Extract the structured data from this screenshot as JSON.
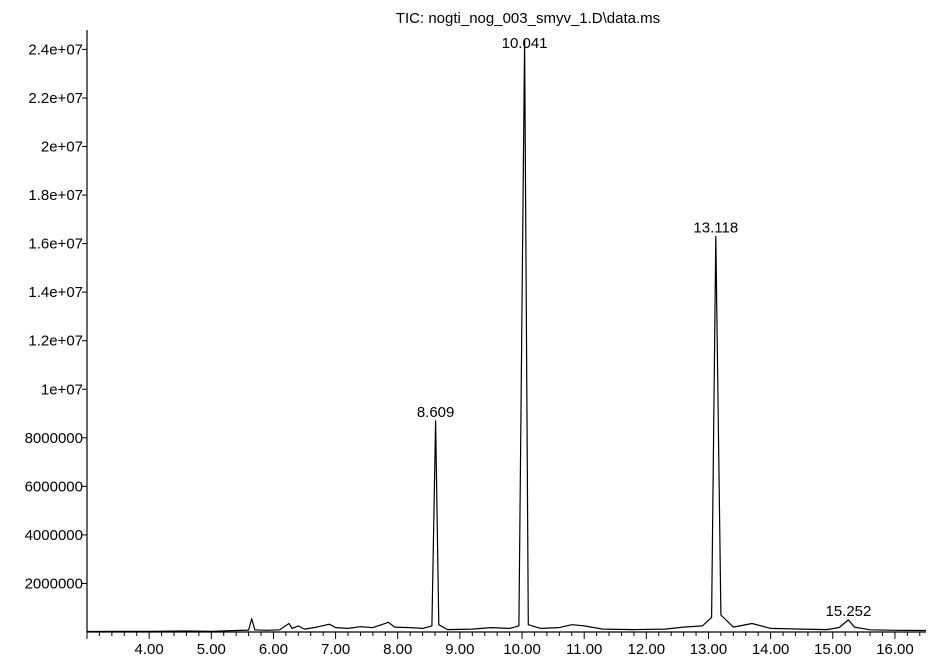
{
  "chart_data": {
    "type": "line",
    "title": "TIC: nogti_nog_003_smyv_1.D\\data.ms",
    "xlabel": "",
    "ylabel": "",
    "xlim": [
      3.0,
      16.5
    ],
    "ylim": [
      0,
      24800000
    ],
    "grid": false,
    "legend": "none",
    "x_ticks": [
      {
        "value": 4.0,
        "label": "4.00"
      },
      {
        "value": 5.0,
        "label": "5.00"
      },
      {
        "value": 6.0,
        "label": "6.00"
      },
      {
        "value": 7.0,
        "label": "7.00"
      },
      {
        "value": 8.0,
        "label": "8.00"
      },
      {
        "value": 9.0,
        "label": "9.00"
      },
      {
        "value": 10.0,
        "label": "10.00"
      },
      {
        "value": 11.0,
        "label": "11.00"
      },
      {
        "value": 12.0,
        "label": "12.00"
      },
      {
        "value": 13.0,
        "label": "13.00"
      },
      {
        "value": 14.0,
        "label": "14.00"
      },
      {
        "value": 15.0,
        "label": "15.00"
      },
      {
        "value": 16.0,
        "label": "16.00"
      }
    ],
    "y_ticks": [
      {
        "value": 2000000,
        "label": "2000000"
      },
      {
        "value": 4000000,
        "label": "4000000"
      },
      {
        "value": 6000000,
        "label": "6000000"
      },
      {
        "value": 8000000,
        "label": "8000000"
      },
      {
        "value": 10000000,
        "label": "1e+07"
      },
      {
        "value": 12000000,
        "label": "1.2e+07"
      },
      {
        "value": 14000000,
        "label": "1.4e+07"
      },
      {
        "value": 16000000,
        "label": "1.6e+07"
      },
      {
        "value": 18000000,
        "label": "1.8e+07"
      },
      {
        "value": 20000000,
        "label": "2e+07"
      },
      {
        "value": 22000000,
        "label": "2.2e+07"
      },
      {
        "value": 24000000,
        "label": "2.4e+07"
      }
    ],
    "peaks": [
      {
        "x": 8.609,
        "y": 8700000,
        "label": "8.609"
      },
      {
        "x": 10.041,
        "y": 24400000,
        "label": "10.041"
      },
      {
        "x": 13.118,
        "y": 16300000,
        "label": "13.118"
      },
      {
        "x": 15.252,
        "y": 500000,
        "label": "15.252"
      }
    ],
    "series": [
      {
        "values": [
          [
            3.0,
            20000
          ],
          [
            3.6,
            30000
          ],
          [
            4.0,
            25000
          ],
          [
            4.6,
            40000
          ],
          [
            5.0,
            30000
          ],
          [
            5.4,
            60000
          ],
          [
            5.6,
            80000
          ],
          [
            5.65,
            550000
          ],
          [
            5.7,
            90000
          ],
          [
            5.9,
            70000
          ],
          [
            6.1,
            90000
          ],
          [
            6.25,
            350000
          ],
          [
            6.3,
            150000
          ],
          [
            6.4,
            250000
          ],
          [
            6.5,
            120000
          ],
          [
            6.7,
            200000
          ],
          [
            6.9,
            320000
          ],
          [
            7.0,
            180000
          ],
          [
            7.2,
            150000
          ],
          [
            7.4,
            220000
          ],
          [
            7.6,
            180000
          ],
          [
            7.85,
            400000
          ],
          [
            7.95,
            200000
          ],
          [
            8.2,
            180000
          ],
          [
            8.4,
            150000
          ],
          [
            8.55,
            250000
          ],
          [
            8.609,
            8700000
          ],
          [
            8.66,
            300000
          ],
          [
            8.8,
            100000
          ],
          [
            9.2,
            120000
          ],
          [
            9.5,
            180000
          ],
          [
            9.8,
            150000
          ],
          [
            9.95,
            250000
          ],
          [
            10.041,
            24400000
          ],
          [
            10.1,
            300000
          ],
          [
            10.3,
            150000
          ],
          [
            10.6,
            180000
          ],
          [
            10.8,
            300000
          ],
          [
            11.0,
            250000
          ],
          [
            11.3,
            120000
          ],
          [
            11.8,
            100000
          ],
          [
            12.3,
            120000
          ],
          [
            12.6,
            200000
          ],
          [
            12.9,
            250000
          ],
          [
            13.05,
            600000
          ],
          [
            13.118,
            16300000
          ],
          [
            13.2,
            700000
          ],
          [
            13.4,
            200000
          ],
          [
            13.7,
            350000
          ],
          [
            14.0,
            150000
          ],
          [
            14.5,
            120000
          ],
          [
            14.9,
            100000
          ],
          [
            15.1,
            180000
          ],
          [
            15.252,
            500000
          ],
          [
            15.35,
            200000
          ],
          [
            15.6,
            90000
          ],
          [
            16.0,
            70000
          ],
          [
            16.5,
            60000
          ]
        ]
      }
    ]
  }
}
